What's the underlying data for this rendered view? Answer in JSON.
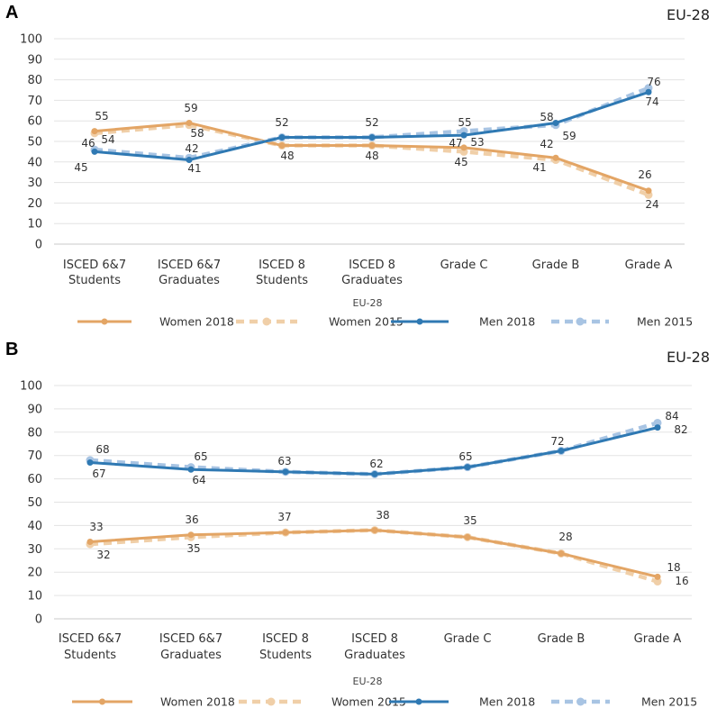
{
  "colors": {
    "women_2018": "#e3a565",
    "women_2015": "#f0cfa8",
    "men_2018": "#2f79b3",
    "men_2015": "#a8c4e3",
    "grid": "#e3e3e3",
    "axis": "#c8c8c8"
  },
  "chart_data": [
    {
      "panel": "A",
      "type": "line",
      "title": "EU-28",
      "subtitle": "EU-28",
      "categories": [
        [
          "ISCED 6&7",
          "Students"
        ],
        [
          "ISCED 6&7",
          "Graduates"
        ],
        [
          "ISCED 8",
          "Students"
        ],
        [
          "ISCED 8",
          "Graduates"
        ],
        [
          "Grade C"
        ],
        [
          "Grade B"
        ],
        [
          "Grade A"
        ]
      ],
      "yticks": [
        0,
        10,
        20,
        30,
        40,
        50,
        60,
        70,
        80,
        90,
        100
      ],
      "ylim": [
        0,
        100
      ],
      "series": [
        {
          "name": "Women 2018",
          "key": "women_2018",
          "dashed": false,
          "values": [
            55,
            59,
            48,
            48,
            47,
            42,
            26
          ]
        },
        {
          "name": "Women 2015",
          "key": "women_2015",
          "dashed": true,
          "values": [
            54,
            58,
            48,
            48,
            45,
            41,
            24
          ]
        },
        {
          "name": "Men 2018",
          "key": "men_2018",
          "dashed": false,
          "values": [
            45,
            41,
            52,
            52,
            53,
            59,
            74
          ]
        },
        {
          "name": "Men 2015",
          "key": "men_2015",
          "dashed": true,
          "values": [
            46,
            42,
            52,
            52,
            55,
            58,
            76
          ]
        }
      ],
      "labels": [
        {
          "text": "55"
        },
        {
          "text": "54"
        },
        {
          "text": "46"
        },
        {
          "text": "45"
        },
        {
          "text": "59"
        },
        {
          "text": "58"
        },
        {
          "text": "42"
        },
        {
          "text": "41"
        },
        {
          "text": "52"
        },
        {
          "text": "48"
        },
        {
          "text": "52"
        },
        {
          "text": "48"
        },
        {
          "text": "55"
        },
        {
          "text": "47"
        },
        {
          "text": "53"
        },
        {
          "text": "45"
        },
        {
          "text": "58"
        },
        {
          "text": "42"
        },
        {
          "text": "59"
        },
        {
          "text": "41"
        },
        {
          "text": "76"
        },
        {
          "text": "74"
        },
        {
          "text": "26"
        },
        {
          "text": "24"
        }
      ]
    },
    {
      "panel": "B",
      "type": "line",
      "title": "EU-28",
      "subtitle": "EU-28",
      "categories": [
        [
          "ISCED 6&7",
          "Students"
        ],
        [
          "ISCED 6&7",
          "Graduates"
        ],
        [
          "ISCED 8",
          "Students"
        ],
        [
          "ISCED 8",
          "Graduates"
        ],
        [
          "Grade C"
        ],
        [
          "Grade B"
        ],
        [
          "Grade A"
        ]
      ],
      "yticks": [
        0,
        10,
        20,
        30,
        40,
        50,
        60,
        70,
        80,
        90,
        100
      ],
      "ylim": [
        0,
        100
      ],
      "series": [
        {
          "name": "Women 2018",
          "key": "women_2018",
          "dashed": false,
          "values": [
            33,
            36,
            37,
            38,
            35,
            28,
            18
          ]
        },
        {
          "name": "Women 2015",
          "key": "women_2015",
          "dashed": true,
          "values": [
            32,
            35,
            37,
            38,
            35,
            28,
            16
          ]
        },
        {
          "name": "Men 2018",
          "key": "men_2018",
          "dashed": false,
          "values": [
            67,
            64,
            63,
            62,
            65,
            72,
            82
          ]
        },
        {
          "name": "Men 2015",
          "key": "men_2015",
          "dashed": true,
          "values": [
            68,
            65,
            63,
            62,
            65,
            72,
            84
          ]
        }
      ],
      "labels": [
        {
          "text": "68"
        },
        {
          "text": "67"
        },
        {
          "text": "65"
        },
        {
          "text": "64"
        },
        {
          "text": "63"
        },
        {
          "text": "62"
        },
        {
          "text": "65"
        },
        {
          "text": "72"
        },
        {
          "text": "84"
        },
        {
          "text": "82"
        },
        {
          "text": "33"
        },
        {
          "text": "32"
        },
        {
          "text": "36"
        },
        {
          "text": "35"
        },
        {
          "text": "37"
        },
        {
          "text": "38"
        },
        {
          "text": "35"
        },
        {
          "text": "28"
        },
        {
          "text": "18"
        },
        {
          "text": "16"
        }
      ]
    }
  ]
}
